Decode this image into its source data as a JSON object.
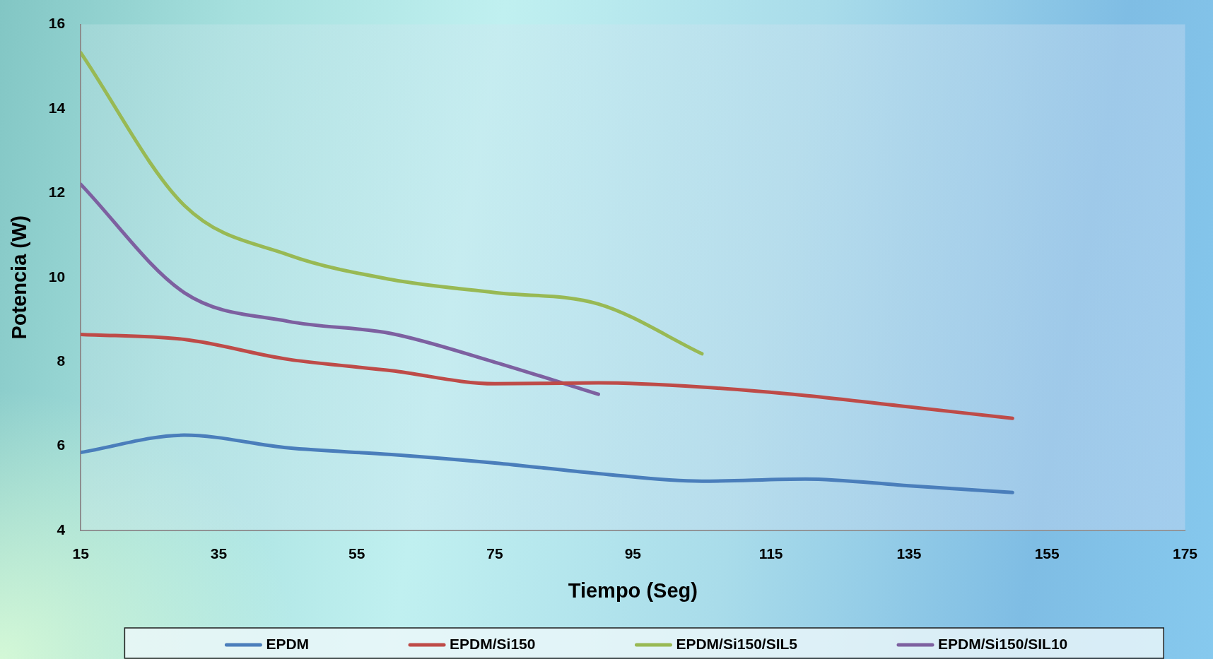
{
  "chart_data": {
    "type": "line",
    "xlabel": "Tiempo (Seg)",
    "ylabel": "Potencia (W)",
    "x": [
      15,
      30,
      45,
      60,
      75,
      90,
      105,
      120,
      135,
      150
    ],
    "series": [
      {
        "name": "EPDM",
        "color": "#4a7ebb",
        "values": [
          5.85,
          6.26,
          5.96,
          5.8,
          5.6,
          5.35,
          5.17,
          5.22,
          5.06,
          4.9
        ]
      },
      {
        "name": "EPDM/Si150",
        "color": "#be4b48",
        "values": [
          8.65,
          8.53,
          8.06,
          7.79,
          7.48,
          7.5,
          7.4,
          7.2,
          6.93,
          6.66
        ]
      },
      {
        "name": "EPDM/Si150/SIL5",
        "color": "#98b954",
        "values": [
          15.33,
          11.71,
          10.54,
          9.95,
          9.64,
          9.37,
          8.19,
          null,
          null,
          null
        ]
      },
      {
        "name": "EPDM/Si150/SIL10",
        "color": "#7d60a0",
        "values": [
          12.21,
          9.64,
          8.96,
          8.67,
          7.99,
          7.23,
          null,
          null,
          null,
          null
        ]
      }
    ],
    "xlim": [
      15,
      175
    ],
    "xticks": [
      15,
      35,
      55,
      75,
      95,
      115,
      135,
      155,
      175
    ],
    "ylim": [
      4,
      16
    ],
    "yticks": [
      4,
      6,
      8,
      10,
      12,
      14,
      16
    ],
    "grid": false,
    "legend": "bottom",
    "marker": "none",
    "line_style": "solid"
  }
}
